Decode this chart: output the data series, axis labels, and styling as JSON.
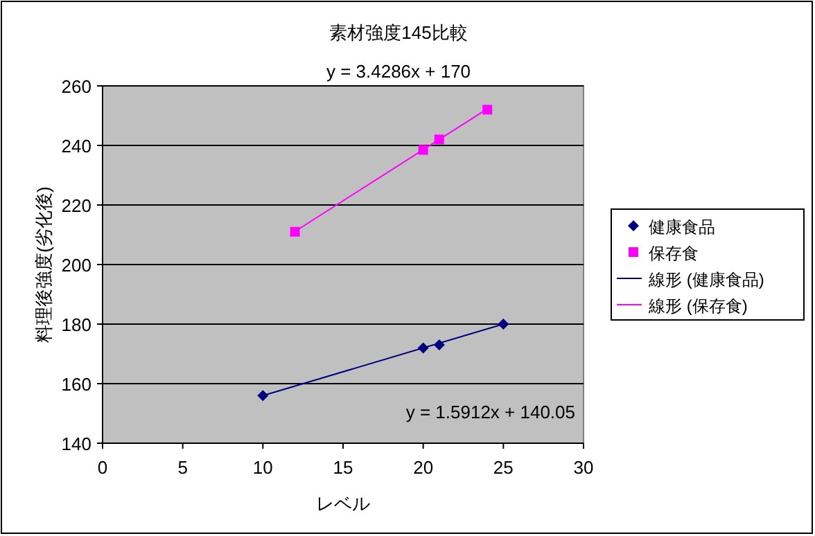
{
  "chart_data": {
    "type": "scatter",
    "title": "素材強度145比較",
    "xlabel": "レベル",
    "ylabel": "料理後強度(劣化後)",
    "xlim": [
      0,
      30
    ],
    "xticks": [
      0,
      5,
      10,
      15,
      20,
      25,
      30
    ],
    "ylim": [
      140,
      260
    ],
    "yticks": [
      140,
      160,
      180,
      200,
      220,
      240,
      260
    ],
    "grid": "y",
    "legend": "right",
    "series": [
      {
        "name": "健康食品",
        "marker": "diamond",
        "color": "#000080",
        "x": [
          10,
          20,
          21,
          25
        ],
        "values": [
          156,
          172,
          173,
          180
        ]
      },
      {
        "name": "保存食",
        "marker": "square",
        "color": "#ff00ff",
        "x": [
          12,
          20,
          21,
          24
        ],
        "values": [
          211,
          238.5,
          242,
          252
        ]
      },
      {
        "name": "線形 (健康食品)",
        "type": "line",
        "marker": "none",
        "color": "#000080",
        "x": [
          10,
          25
        ],
        "values": [
          156,
          180
        ]
      },
      {
        "name": "線形 (保存食)",
        "type": "line",
        "marker": "none",
        "color": "#ff00ff",
        "x": [
          12,
          24
        ],
        "values": [
          211.1,
          252.3
        ]
      }
    ],
    "annotations": [
      "y = 3.4286x + 170",
      "y = 1.5912x + 140.05"
    ]
  }
}
